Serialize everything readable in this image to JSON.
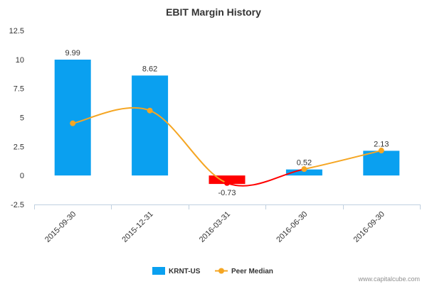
{
  "chart_data": {
    "type": "bar",
    "title": "EBIT Margin History",
    "xlabel": "",
    "ylabel": "",
    "categories": [
      "2015-09-30",
      "2015-12-31",
      "2016-03-31",
      "2016-06-30",
      "2016-09-30"
    ],
    "y_ticks": [
      "12.5",
      "10",
      "7.5",
      "5",
      "2.5",
      "0",
      "-2.5"
    ],
    "ylim": [
      -2.5,
      12.5
    ],
    "grid": false,
    "legend_position": "bottom",
    "series": [
      {
        "name": "KRNT-US",
        "type": "bar",
        "values": [
          9.99,
          8.62,
          -0.73,
          0.52,
          2.13
        ],
        "labels": [
          "9.99",
          "8.62",
          "-0.73",
          "0.52",
          "2.13"
        ],
        "color": "#0aa0f0",
        "negative_color": "#ff0000"
      },
      {
        "name": "Peer Median",
        "type": "line",
        "values": [
          4.5,
          5.6,
          -0.65,
          0.55,
          2.15
        ],
        "color": "#f5a623",
        "negative_color": "#ff0000"
      }
    ],
    "credit": "www.capitalcube.com"
  }
}
